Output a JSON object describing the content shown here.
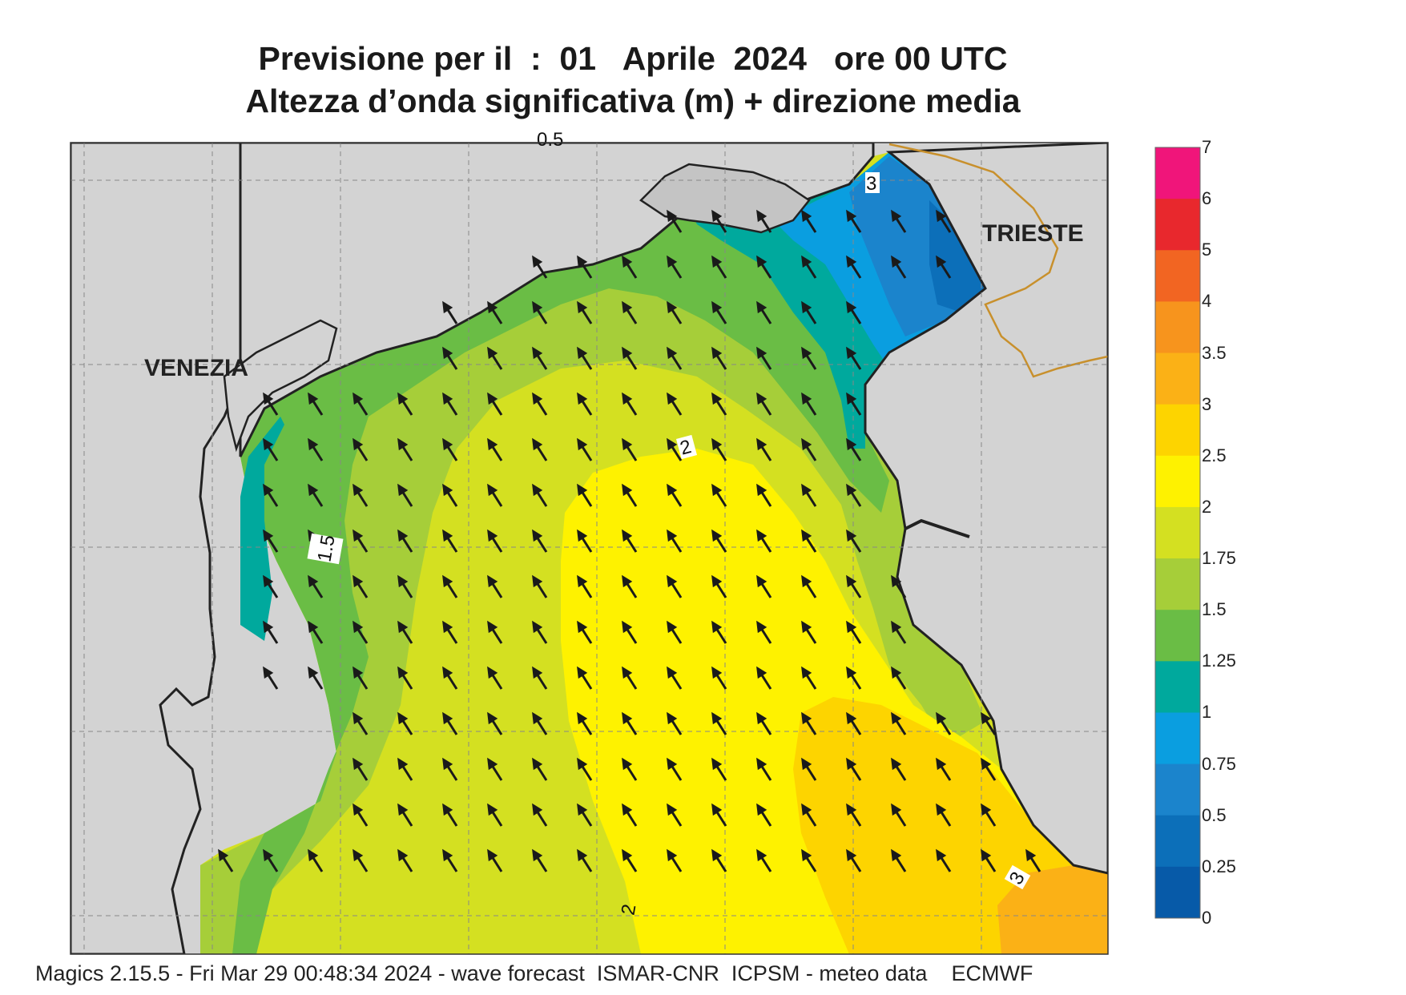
{
  "title_line1": "Previsione per il  :  01   Aprile  2024   ore 00 UTC",
  "title_line2": "Altezza d’onda significativa (m) + direzione media",
  "cities": {
    "venezia": "VENEZIA",
    "trieste": "TRIESTE"
  },
  "contour_labels": {
    "top_edge": "0.5",
    "nw": "3",
    "center": "2",
    "west": "1.5",
    "south": "2",
    "southeast": "3"
  },
  "legend": {
    "labels": [
      "7",
      "6",
      "5",
      "4",
      "3.5",
      "3",
      "2.5",
      "2",
      "1.75",
      "1.5",
      "1.25",
      "1",
      "0.75",
      "0.5",
      "0.25",
      "0"
    ],
    "colors": [
      "#f0157a",
      "#e8282d",
      "#f26522",
      "#f7941d",
      "#fbb116",
      "#fdd400",
      "#fef200",
      "#d4e021",
      "#a6ce39",
      "#6abd45",
      "#00a99d",
      "#0a9ee0",
      "#1b84cc",
      "#0c6fb9",
      "#075aa8"
    ]
  },
  "footer": "Magics 2.15.5 - Fri Mar 29 00:48:34 2024 - wave forecast  ISMAR-CNR  ICPSM - meteo data    ECMWF"
}
